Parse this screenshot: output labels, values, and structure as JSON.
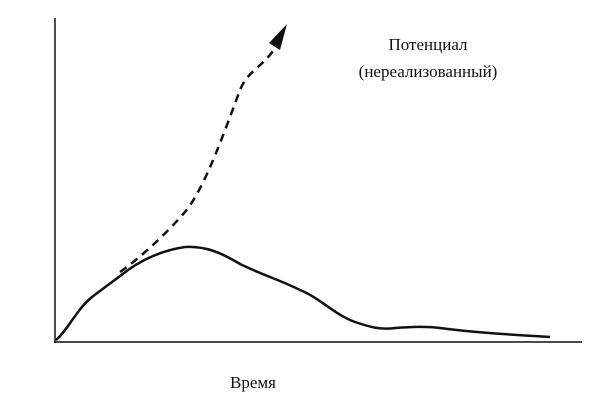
{
  "annotation": {
    "line1": "Потенциал",
    "line2": "(нереализованный)"
  },
  "x_axis_label": "Время"
}
